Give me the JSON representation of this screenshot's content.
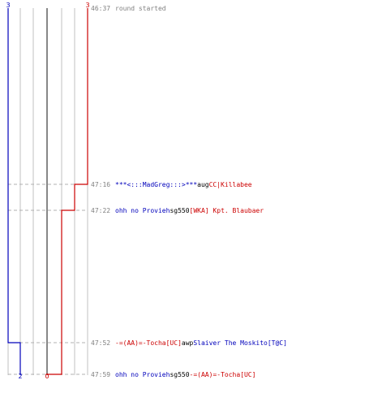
{
  "chart_data": {
    "type": "line",
    "title": "",
    "xlabel": "",
    "ylabel": "",
    "team_colors": {
      "blue": "#0000bb",
      "red": "#cc0000"
    },
    "xlim": [
      0,
      5
    ],
    "grid": true,
    "series": [
      {
        "team": "blue",
        "color": "#0000bb",
        "start_label": "3",
        "end_label": "2",
        "steps": [
          {
            "time": "46:37",
            "alive": 3
          },
          {
            "time": "47:52",
            "alive": 2
          }
        ]
      },
      {
        "team": "red",
        "color": "#cc0000",
        "start_label": "3",
        "end_label": "0",
        "steps": [
          {
            "time": "46:37",
            "alive": 3
          },
          {
            "time": "47:16",
            "alive": 2
          },
          {
            "time": "47:22",
            "alive": 1
          },
          {
            "time": "47:59",
            "alive": 0
          }
        ]
      }
    ],
    "events": [
      {
        "time": "46:37",
        "parts": [
          {
            "text": "round started",
            "kind": "message"
          }
        ]
      },
      {
        "time": "47:16",
        "parts": [
          {
            "text": "***<:::MadGreg:::>***",
            "kind": "blue"
          },
          {
            "text": "aug",
            "kind": "black"
          },
          {
            "text": "CC|Killabee",
            "kind": "red"
          }
        ]
      },
      {
        "time": "47:22",
        "parts": [
          {
            "text": "ohh no Provieh",
            "kind": "blue"
          },
          {
            "text": "sg550",
            "kind": "black"
          },
          {
            "text": "[WKA] Kpt. Blaubaer",
            "kind": "red"
          }
        ]
      },
      {
        "time": "47:52",
        "parts": [
          {
            "text": "-=(AA)=-Tocha[UC]",
            "kind": "red"
          },
          {
            "text": "awp",
            "kind": "black",
            "gap": 14
          },
          {
            "text": "Slaiver The Moskito[T@C]",
            "kind": "blue"
          }
        ]
      },
      {
        "time": "47:59",
        "parts": [
          {
            "text": "ohh no Provieh",
            "kind": "blue"
          },
          {
            "text": "sg550",
            "kind": "black"
          },
          {
            "text": "-=(AA)=-Tocha[UC]",
            "kind": "red"
          }
        ]
      }
    ]
  }
}
